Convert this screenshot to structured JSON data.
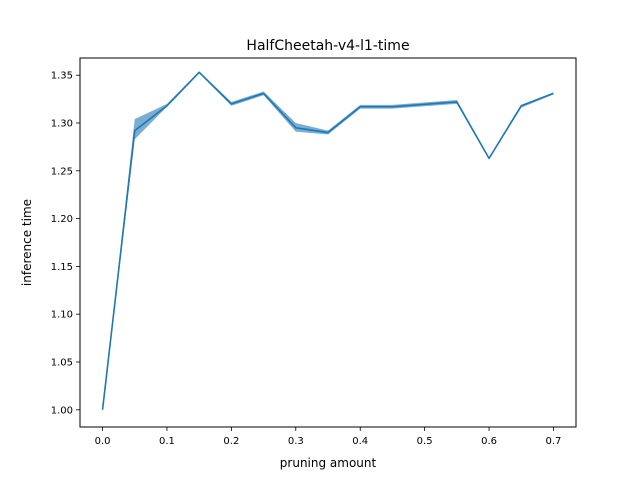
{
  "chart_data": {
    "type": "line",
    "title": "HalfCheetah-v4-l1-time",
    "xlabel": "pruning amount",
    "ylabel": "inference time",
    "xlim": [
      -0.035,
      0.735
    ],
    "ylim": [
      0.982,
      1.368
    ],
    "xticks": [
      0.0,
      0.1,
      0.2,
      0.3,
      0.4,
      0.5,
      0.6,
      0.7
    ],
    "xtick_labels": [
      "0.0",
      "0.1",
      "0.2",
      "0.3",
      "0.4",
      "0.5",
      "0.6",
      "0.7"
    ],
    "yticks": [
      1.0,
      1.05,
      1.1,
      1.15,
      1.2,
      1.25,
      1.3,
      1.35
    ],
    "ytick_labels": [
      "1.00",
      "1.05",
      "1.10",
      "1.15",
      "1.20",
      "1.25",
      "1.30",
      "1.35"
    ],
    "grid": false,
    "series": [
      {
        "color": "#1f77b4",
        "band_color": "#1f77b4",
        "x": [
          0.0,
          0.05,
          0.1,
          0.15,
          0.2,
          0.25,
          0.3,
          0.35,
          0.4,
          0.45,
          0.55,
          0.6,
          0.65,
          0.7
        ],
        "y": [
          1.0,
          1.292,
          1.318,
          1.353,
          1.32,
          1.331,
          1.295,
          1.29,
          1.317,
          1.317,
          1.322,
          1.263,
          1.318,
          1.331
        ],
        "y_lower": [
          1.0,
          1.283,
          1.317,
          1.352,
          1.318,
          1.329,
          1.291,
          1.288,
          1.315,
          1.315,
          1.32,
          1.262,
          1.316,
          1.33
        ],
        "y_upper": [
          1.0,
          1.304,
          1.32,
          1.354,
          1.322,
          1.333,
          1.3,
          1.292,
          1.319,
          1.319,
          1.324,
          1.264,
          1.319,
          1.332
        ]
      }
    ]
  }
}
